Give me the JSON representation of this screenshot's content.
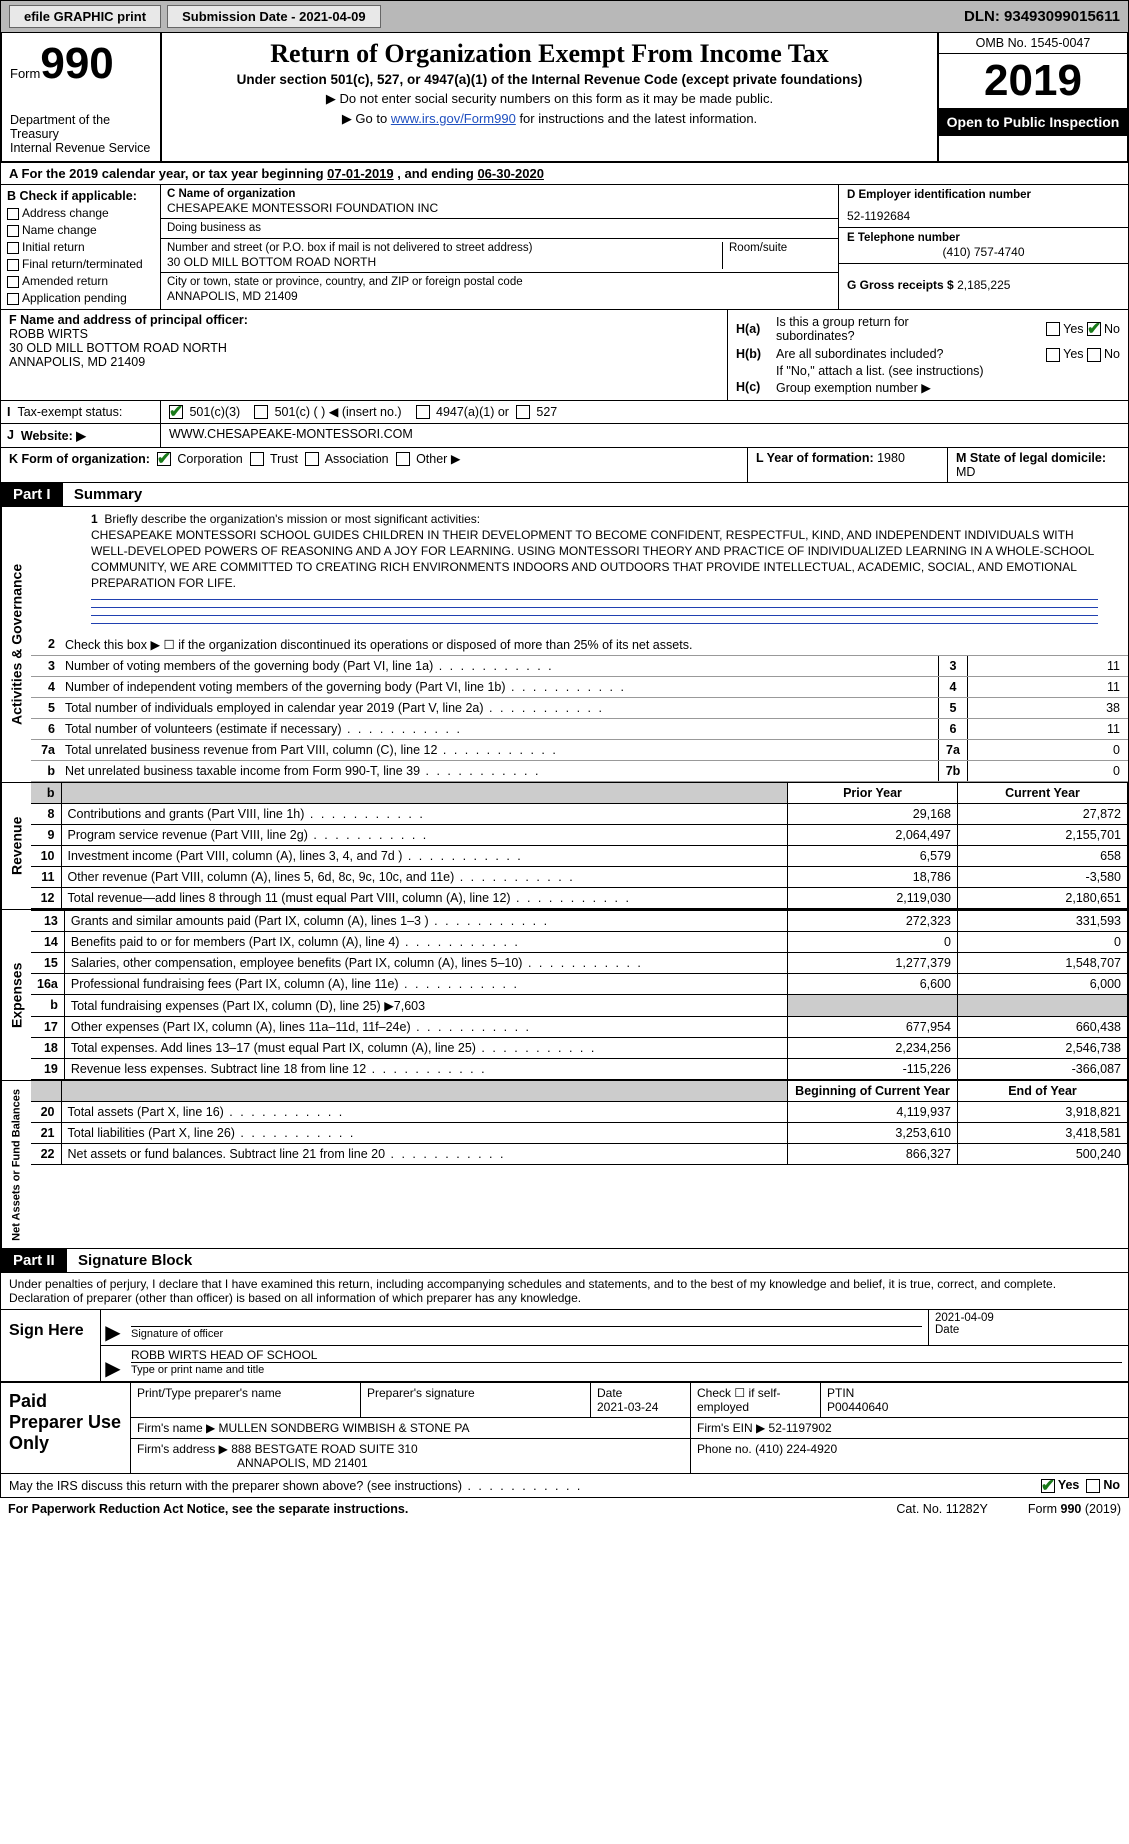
{
  "topbar": {
    "efile": "efile GRAPHIC print",
    "subdate_label": "Submission Date - ",
    "subdate": "2021-04-09",
    "dln_label": "DLN: ",
    "dln": "93493099015611"
  },
  "hdr": {
    "form_word": "Form",
    "form_num": "990",
    "dept": "Department of the Treasury\nInternal Revenue Service",
    "title": "Return of Organization Exempt From Income Tax",
    "sub": "Under section 501(c), 527, or 4947(a)(1) of the Internal Revenue Code (except private foundations)",
    "note1": "▶ Do not enter social security numbers on this form as it may be made public.",
    "note2a": "▶ Go to ",
    "note2_link": "www.irs.gov/Form990",
    "note2b": " for instructions and the latest information.",
    "omb": "OMB No. 1545-0047",
    "year": "2019",
    "open": "Open to Public Inspection"
  },
  "period": {
    "a": "A For the 2019 calendar year, or tax year beginning ",
    "begin": "07-01-2019",
    "mid": " , and ending ",
    "end": "06-30-2020"
  },
  "B": {
    "hdr": "B Check if applicable:",
    "items": [
      "Address change",
      "Name change",
      "Initial return",
      "Final return/terminated",
      "Amended return",
      "Application pending"
    ]
  },
  "C": {
    "name_lab": "C Name of organization",
    "name": "CHESAPEAKE MONTESSORI FOUNDATION INC",
    "dba_lab": "Doing business as",
    "dba": "",
    "street_lab": "Number and street (or P.O. box if mail is not delivered to street address)",
    "street": "30 OLD MILL BOTTOM ROAD NORTH",
    "room_lab": "Room/suite",
    "city_lab": "City or town, state or province, country, and ZIP or foreign postal code",
    "city": "ANNAPOLIS, MD  21409"
  },
  "D": {
    "lab": "D Employer identification number",
    "val": "52-1192684"
  },
  "E": {
    "lab": "E Telephone number",
    "val": "(410) 757-4740"
  },
  "G": {
    "lab": "G Gross receipts $ ",
    "val": "2,185,225"
  },
  "F": {
    "lab": "F  Name and address of principal officer:",
    "name": "ROBB WIRTS",
    "addr1": "30 OLD MILL BOTTOM ROAD NORTH",
    "addr2": "ANNAPOLIS, MD  21409"
  },
  "H": {
    "a_lab": "H(a)",
    "a_q": "Is this a group return for subordinates?",
    "a_yes": "Yes",
    "a_no": "No",
    "b_lab": "H(b)",
    "b_q": "Are all subordinates included?",
    "b_note": "If \"No,\" attach a list. (see instructions)",
    "c_lab": "H(c)",
    "c_q": "Group exemption number ▶"
  },
  "I": {
    "lab": "Tax-exempt status:",
    "o1": "501(c)(3)",
    "o2": "501(c) (   ) ◀ (insert no.)",
    "o3": "4947(a)(1) or",
    "o4": "527"
  },
  "J": {
    "lab": "Website: ▶",
    "val": "WWW.CHESAPEAKE-MONTESSORI.COM"
  },
  "K": {
    "lab": "K Form of organization:",
    "o1": "Corporation",
    "o2": "Trust",
    "o3": "Association",
    "o4": "Other ▶"
  },
  "L": {
    "lab": "L Year of formation: ",
    "val": "1980"
  },
  "M": {
    "lab": "M State of legal domicile:",
    "val": "MD"
  },
  "part1": {
    "hdr": "Part I",
    "title": "Summary",
    "q1": "Briefly describe the organization's mission or most significant activities:",
    "mission": "CHESAPEAKE MONTESSORI SCHOOL GUIDES CHILDREN IN THEIR DEVELOPMENT TO BECOME CONFIDENT, RESPECTFUL, KIND, AND INDEPENDENT INDIVIDUALS WITH WELL-DEVELOPED POWERS OF REASONING AND A JOY FOR LEARNING. USING MONTESSORI THEORY AND PRACTICE OF INDIVIDUALIZED LEARNING IN A WHOLE-SCHOOL COMMUNITY, WE ARE COMMITTED TO CREATING RICH ENVIRONMENTS INDOORS AND OUTDOORS THAT PROVIDE INTELLECTUAL, ACADEMIC, SOCIAL, AND EMOTIONAL PREPARATION FOR LIFE.",
    "q2": "Check this box ▶ ☐ if the organization discontinued its operations or disposed of more than 25% of its net assets.",
    "rows": [
      {
        "n": "3",
        "t": "Number of voting members of the governing body (Part VI, line 1a)",
        "b": "3",
        "v": "11"
      },
      {
        "n": "4",
        "t": "Number of independent voting members of the governing body (Part VI, line 1b)",
        "b": "4",
        "v": "11"
      },
      {
        "n": "5",
        "t": "Total number of individuals employed in calendar year 2019 (Part V, line 2a)",
        "b": "5",
        "v": "38"
      },
      {
        "n": "6",
        "t": "Total number of volunteers (estimate if necessary)",
        "b": "6",
        "v": "11"
      },
      {
        "n": "7a",
        "t": "Total unrelated business revenue from Part VIII, column (C), line 12",
        "b": "7a",
        "v": "0"
      },
      {
        "n": "b",
        "t": "Net unrelated business taxable income from Form 990-T, line 39",
        "b": "7b",
        "v": "0"
      }
    ]
  },
  "revenue": {
    "tab": "Revenue",
    "py": "Prior Year",
    "cy": "Current Year",
    "rows": [
      {
        "n": "8",
        "t": "Contributions and grants (Part VIII, line 1h)",
        "py": "29,168",
        "cy": "27,872"
      },
      {
        "n": "9",
        "t": "Program service revenue (Part VIII, line 2g)",
        "py": "2,064,497",
        "cy": "2,155,701"
      },
      {
        "n": "10",
        "t": "Investment income (Part VIII, column (A), lines 3, 4, and 7d )",
        "py": "6,579",
        "cy": "658"
      },
      {
        "n": "11",
        "t": "Other revenue (Part VIII, column (A), lines 5, 6d, 8c, 9c, 10c, and 11e)",
        "py": "18,786",
        "cy": "-3,580"
      },
      {
        "n": "12",
        "t": "Total revenue—add lines 8 through 11 (must equal Part VIII, column (A), line 12)",
        "py": "2,119,030",
        "cy": "2,180,651"
      }
    ]
  },
  "expenses": {
    "tab": "Expenses",
    "rows": [
      {
        "n": "13",
        "t": "Grants and similar amounts paid (Part IX, column (A), lines 1–3 )",
        "py": "272,323",
        "cy": "331,593"
      },
      {
        "n": "14",
        "t": "Benefits paid to or for members (Part IX, column (A), line 4)",
        "py": "0",
        "cy": "0"
      },
      {
        "n": "15",
        "t": "Salaries, other compensation, employee benefits (Part IX, column (A), lines 5–10)",
        "py": "1,277,379",
        "cy": "1,548,707"
      },
      {
        "n": "16a",
        "t": "Professional fundraising fees (Part IX, column (A), line 11e)",
        "py": "6,600",
        "cy": "6,000"
      },
      {
        "n": "b",
        "t": "Total fundraising expenses (Part IX, column (D), line 25) ▶7,603",
        "py": "",
        "cy": "",
        "shade": true
      },
      {
        "n": "17",
        "t": "Other expenses (Part IX, column (A), lines 11a–11d, 11f–24e)",
        "py": "677,954",
        "cy": "660,438"
      },
      {
        "n": "18",
        "t": "Total expenses. Add lines 13–17 (must equal Part IX, column (A), line 25)",
        "py": "2,234,256",
        "cy": "2,546,738"
      },
      {
        "n": "19",
        "t": "Revenue less expenses. Subtract line 18 from line 12",
        "py": "-115,226",
        "cy": "-366,087"
      }
    ]
  },
  "netassets": {
    "tab": "Net Assets or Fund Balances",
    "by": "Beginning of Current Year",
    "ey": "End of Year",
    "rows": [
      {
        "n": "20",
        "t": "Total assets (Part X, line 16)",
        "py": "4,119,937",
        "cy": "3,918,821"
      },
      {
        "n": "21",
        "t": "Total liabilities (Part X, line 26)",
        "py": "3,253,610",
        "cy": "3,418,581"
      },
      {
        "n": "22",
        "t": "Net assets or fund balances. Subtract line 21 from line 20",
        "py": "866,327",
        "cy": "500,240"
      }
    ]
  },
  "part2": {
    "hdr": "Part II",
    "title": "Signature Block",
    "decl": "Under penalties of perjury, I declare that I have examined this return, including accompanying schedules and statements, and to the best of my knowledge and belief, it is true, correct, and complete. Declaration of preparer (other than officer) is based on all information of which preparer has any knowledge."
  },
  "sign": {
    "lab": "Sign Here",
    "sig_lab": "Signature of officer",
    "date_lab": "Date",
    "date": "2021-04-09",
    "name": "ROBB WIRTS HEAD OF SCHOOL",
    "name_lab": "Type or print name and title"
  },
  "prep": {
    "lab": "Paid Preparer Use Only",
    "h1": "Print/Type preparer's name",
    "h2": "Preparer's signature",
    "h3": "Date",
    "h3v": "2021-03-24",
    "h4": "Check ☐ if self-employed",
    "h5": "PTIN",
    "h5v": "P00440640",
    "firm_lab": "Firm's name    ▶",
    "firm": "MULLEN SONDBERG WIMBISH & STONE PA",
    "ein_lab": "Firm's EIN ▶",
    "ein": "52-1197902",
    "addr_lab": "Firm's address ▶",
    "addr1": "888 BESTGATE ROAD SUITE 310",
    "addr2": "ANNAPOLIS, MD  21401",
    "phone_lab": "Phone no. ",
    "phone": "(410) 224-4920"
  },
  "discuss": {
    "q": "May the IRS discuss this return with the preparer shown above? (see instructions)",
    "yes": "Yes",
    "no": "No"
  },
  "footer": {
    "l": "For Paperwork Reduction Act Notice, see the separate instructions.",
    "c": "Cat. No. 11282Y",
    "r": "Form 990 (2019)"
  }
}
